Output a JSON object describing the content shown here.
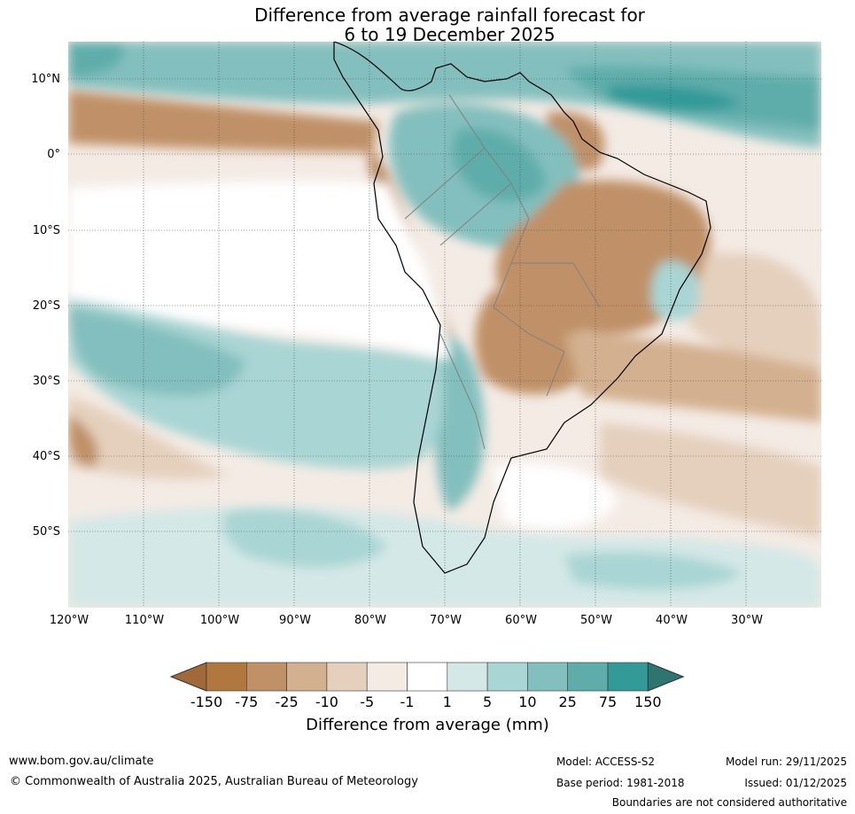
{
  "title_line1": "Difference from average rainfall forecast for",
  "title_line2": "6 to 19 December 2025",
  "latitude_labels": [
    "10°N",
    "0°",
    "10°S",
    "20°S",
    "30°S",
    "40°S",
    "50°S"
  ],
  "longitude_labels": [
    "120°W",
    "110°W",
    "100°W",
    "90°W",
    "80°W",
    "70°W",
    "60°W",
    "50°W",
    "40°W",
    "30°W"
  ],
  "colorbar": {
    "label": "Difference from average (mm)",
    "ticks": [
      "-150",
      "-75",
      "-25",
      "-10",
      "-5",
      "-1",
      "1",
      "5",
      "10",
      "25",
      "75",
      "150"
    ],
    "colors": [
      "#a0693a",
      "#b0783f",
      "#c09167",
      "#d3b08f",
      "#e5d0bd",
      "#f4ebe5",
      "#ffffff",
      "#d4e8e7",
      "#a9d5d4",
      "#83bfbe",
      "#5fadab",
      "#339a98",
      "#2e7470"
    ]
  },
  "footer": {
    "url": "www.bom.gov.au/climate",
    "copyright": "© Commonwealth of Australia 2025, Australian Bureau of Meteorology",
    "model": "Model: ACCESS-S2",
    "base_period": "Base period: 1981-2018",
    "model_run": "Model run: 29/11/2025",
    "issued": "Issued: 01/12/2025",
    "disclaimer": "Boundaries are not considered authoritative"
  }
}
